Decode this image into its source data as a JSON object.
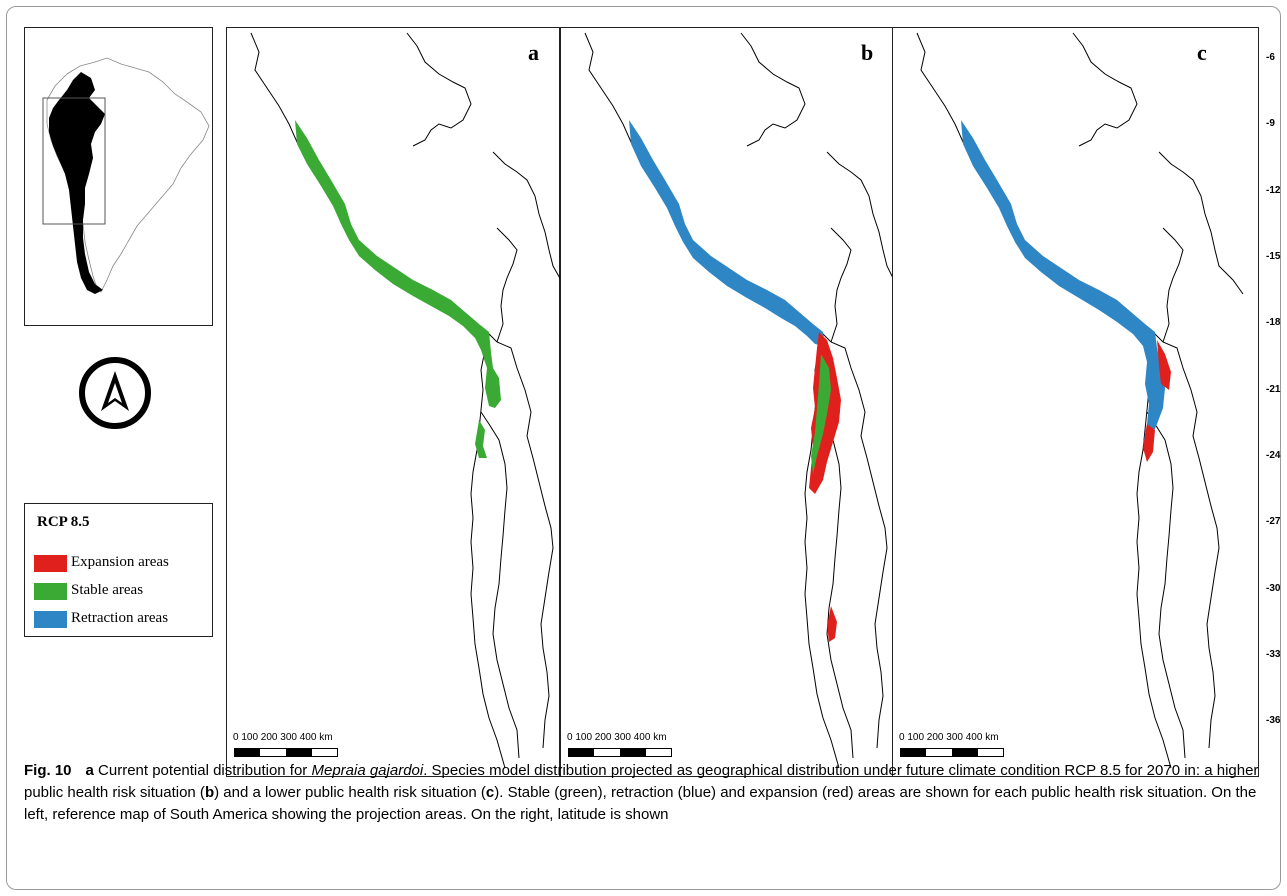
{
  "figure": {
    "panels": [
      {
        "id": "a",
        "letter": "a",
        "scale_label": "0   100  200  300  400 km"
      },
      {
        "id": "b",
        "letter": "b",
        "scale_label": "0   100  200  300  400 km"
      },
      {
        "id": "c",
        "letter": "c",
        "scale_label": "0   100  200  300  400 km"
      }
    ],
    "latitude_labels": [
      "-6",
      "-9",
      "-12",
      "-15",
      "-18",
      "-21",
      "-24",
      "-27",
      "-30",
      "-33",
      "-36"
    ],
    "legend": {
      "title": "RCP 8.5",
      "items": [
        {
          "label": "Expansion areas",
          "color": "#e0201d"
        },
        {
          "label": "Stable areas",
          "color": "#3aaa35"
        },
        {
          "label": "Retraction areas",
          "color": "#2f86c4"
        }
      ]
    },
    "north_arrow_icon": "north-arrow-icon",
    "colors": {
      "expansion": "#e0201d",
      "stable": "#3aaa35",
      "retraction": "#2f86c4"
    }
  },
  "caption": {
    "fig_label": "Fig. 10",
    "t1_a": "a",
    "t2": " Current potential distribution for ",
    "t3_species": "Mepraia gajardoi",
    "t4": ". Species model distribution projected as geographical distribution under future climate condition RCP 8.5 for 2070 in: a higher public health risk situation (",
    "t5_b": "b",
    "t6": ") and a lower public health risk situation (",
    "t7_c": "c",
    "t8": "). Stable (green), retraction (blue) and expansion (red) areas are shown for each public health risk situation. On the left, reference map of South America showing the projection areas. On the right, latitude is shown"
  }
}
